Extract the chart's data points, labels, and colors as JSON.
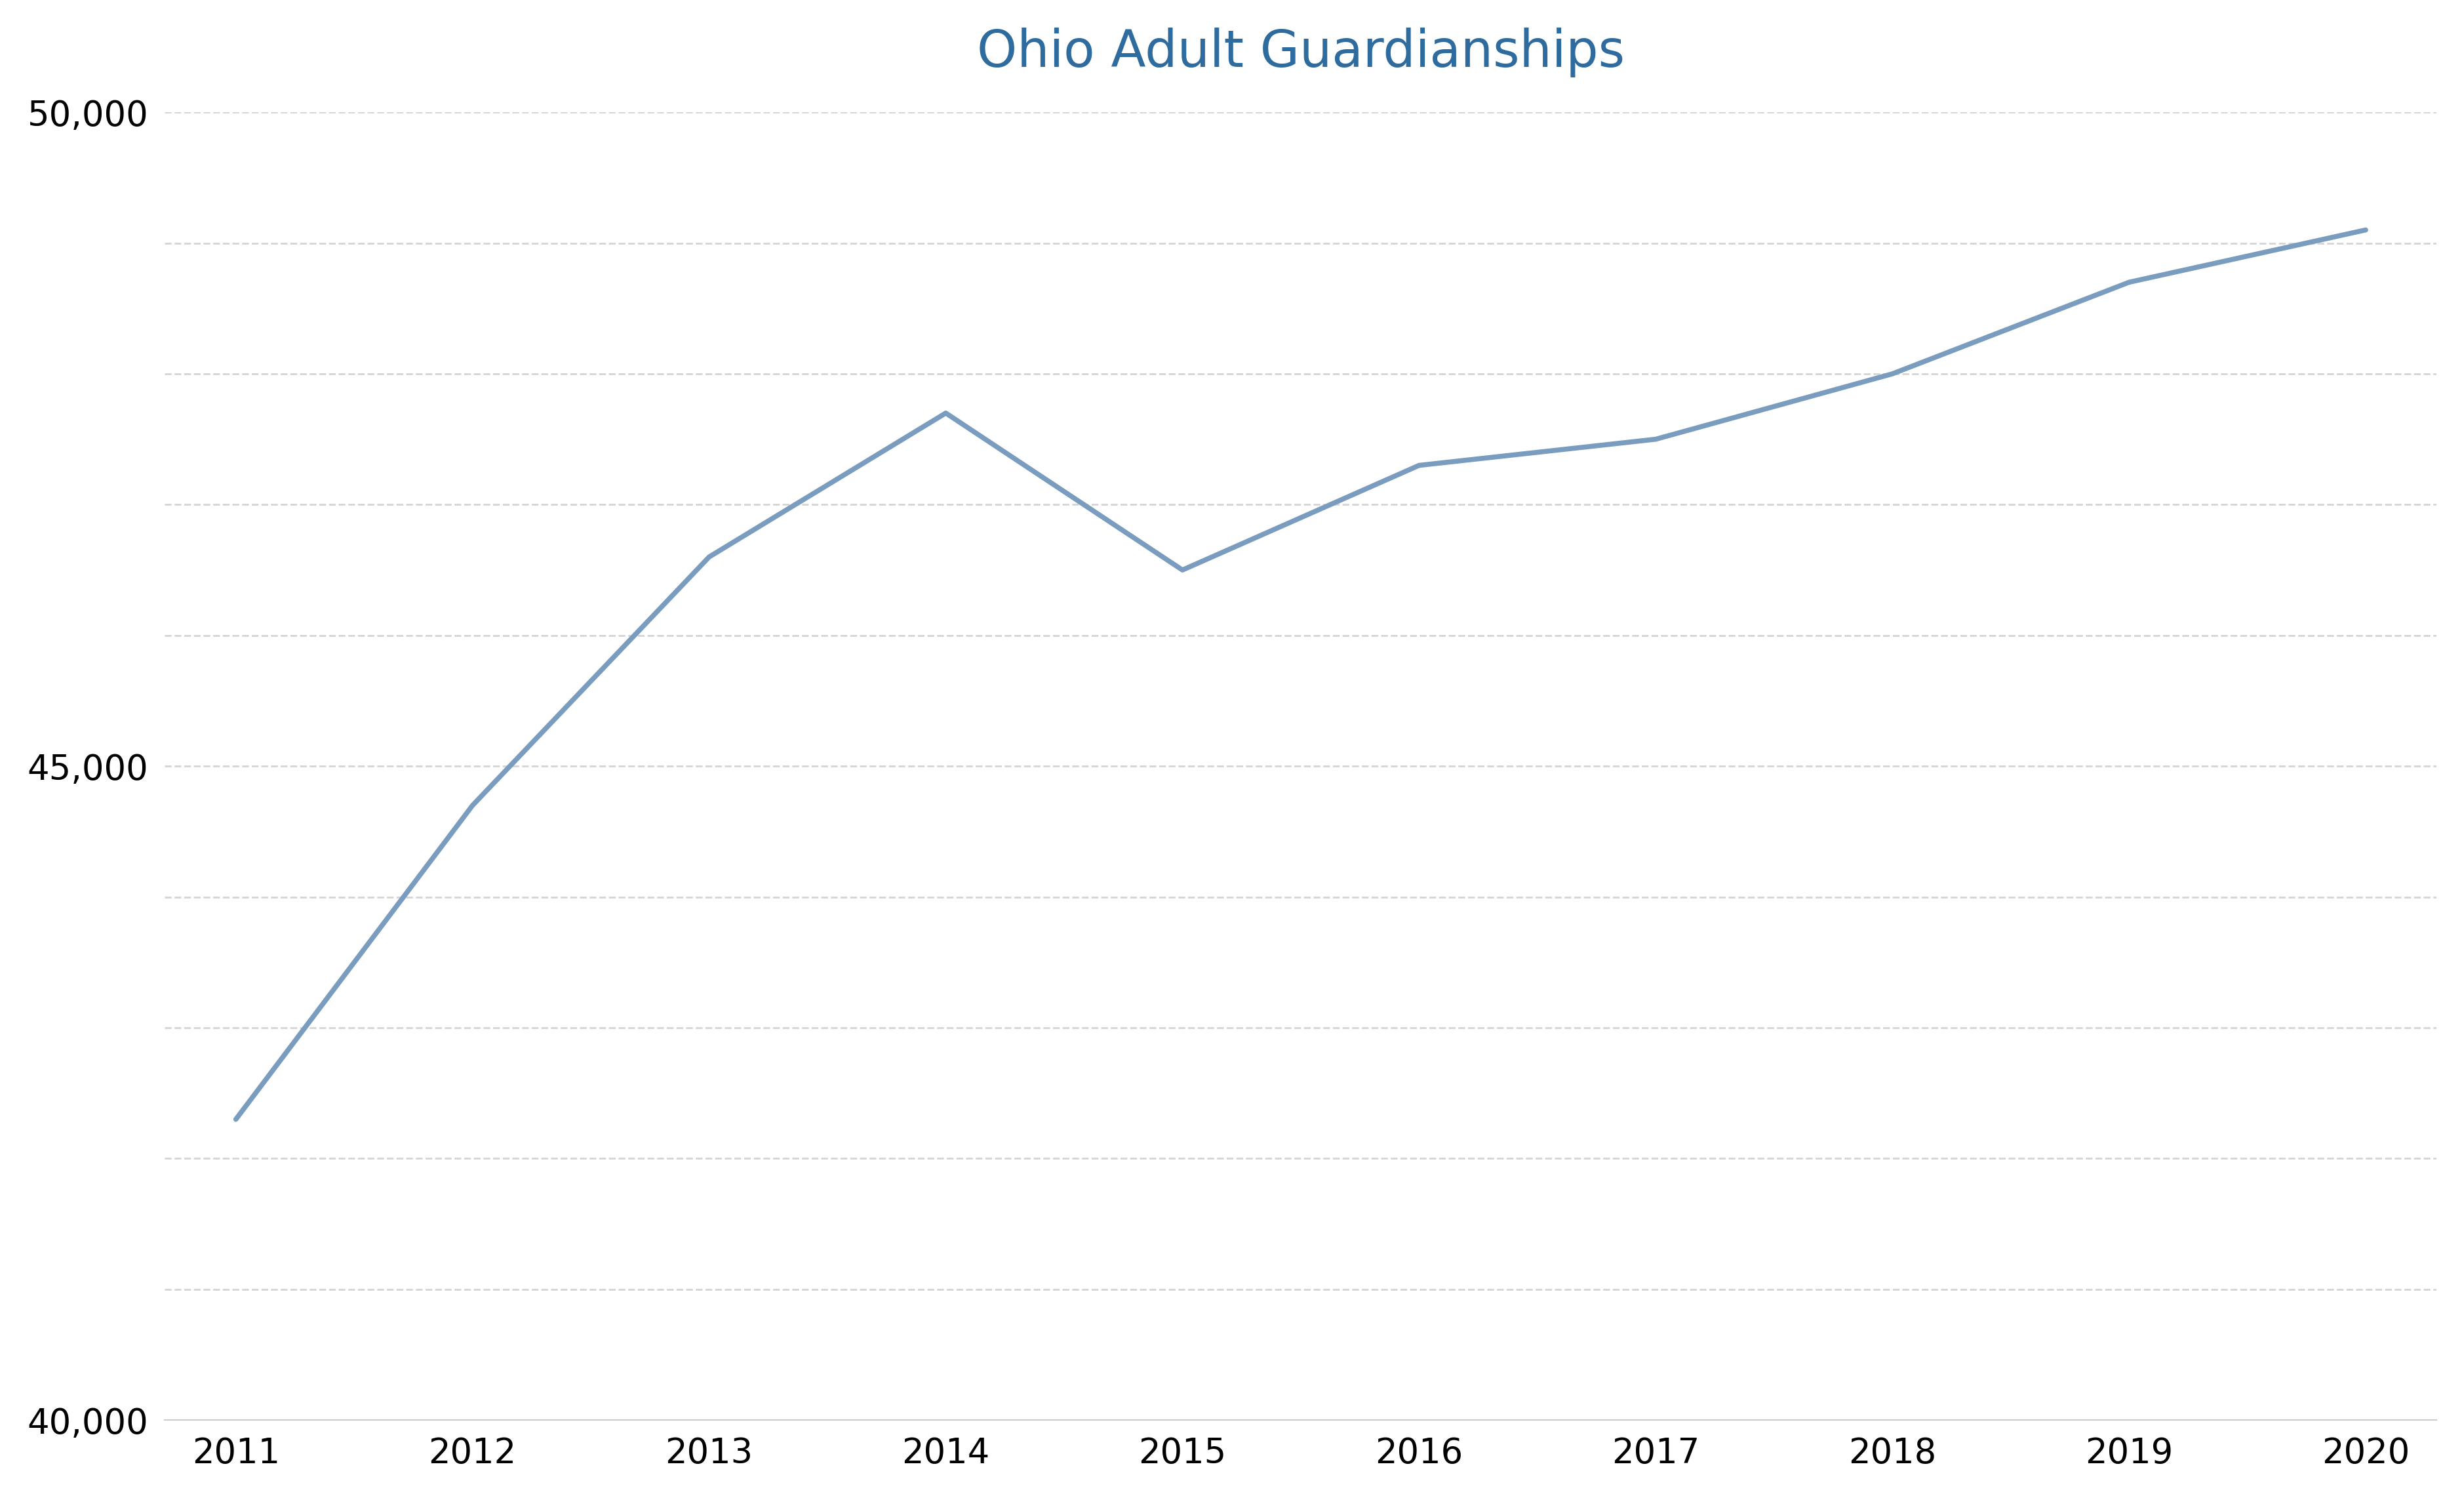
{
  "title": "Ohio Adult Guardianships",
  "title_color": "#2E6B9E",
  "years": [
    2011,
    2012,
    2013,
    2014,
    2015,
    2016,
    2017,
    2018,
    2019,
    2020
  ],
  "values": [
    42300,
    44700,
    46600,
    47700,
    46500,
    47300,
    47500,
    48000,
    48700,
    49100
  ],
  "line_color": "#7A9DBF",
  "line_width": 5.5,
  "ylim": [
    40000,
    50000
  ],
  "yticks": [
    40000,
    41000,
    42000,
    43000,
    44000,
    45000,
    46000,
    47000,
    48000,
    49000,
    50000
  ],
  "ytick_labels": [
    "40,000",
    "",
    "",
    "",
    "",
    "45,000",
    "",
    "",
    "",
    "",
    "50,000"
  ],
  "background_color": "#ffffff",
  "grid_color": "#d0d0d0",
  "title_fontsize": 56,
  "tick_fontsize": 38
}
